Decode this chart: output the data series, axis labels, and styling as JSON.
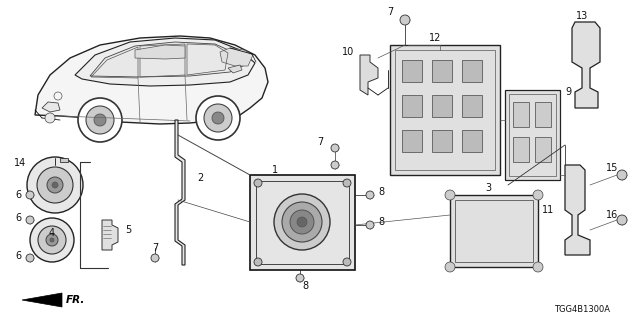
{
  "background_color": "#ffffff",
  "text_color": "#111111",
  "diagram_code": "TGG4B1300A",
  "fig_width": 6.4,
  "fig_height": 3.2,
  "dpi": 100
}
